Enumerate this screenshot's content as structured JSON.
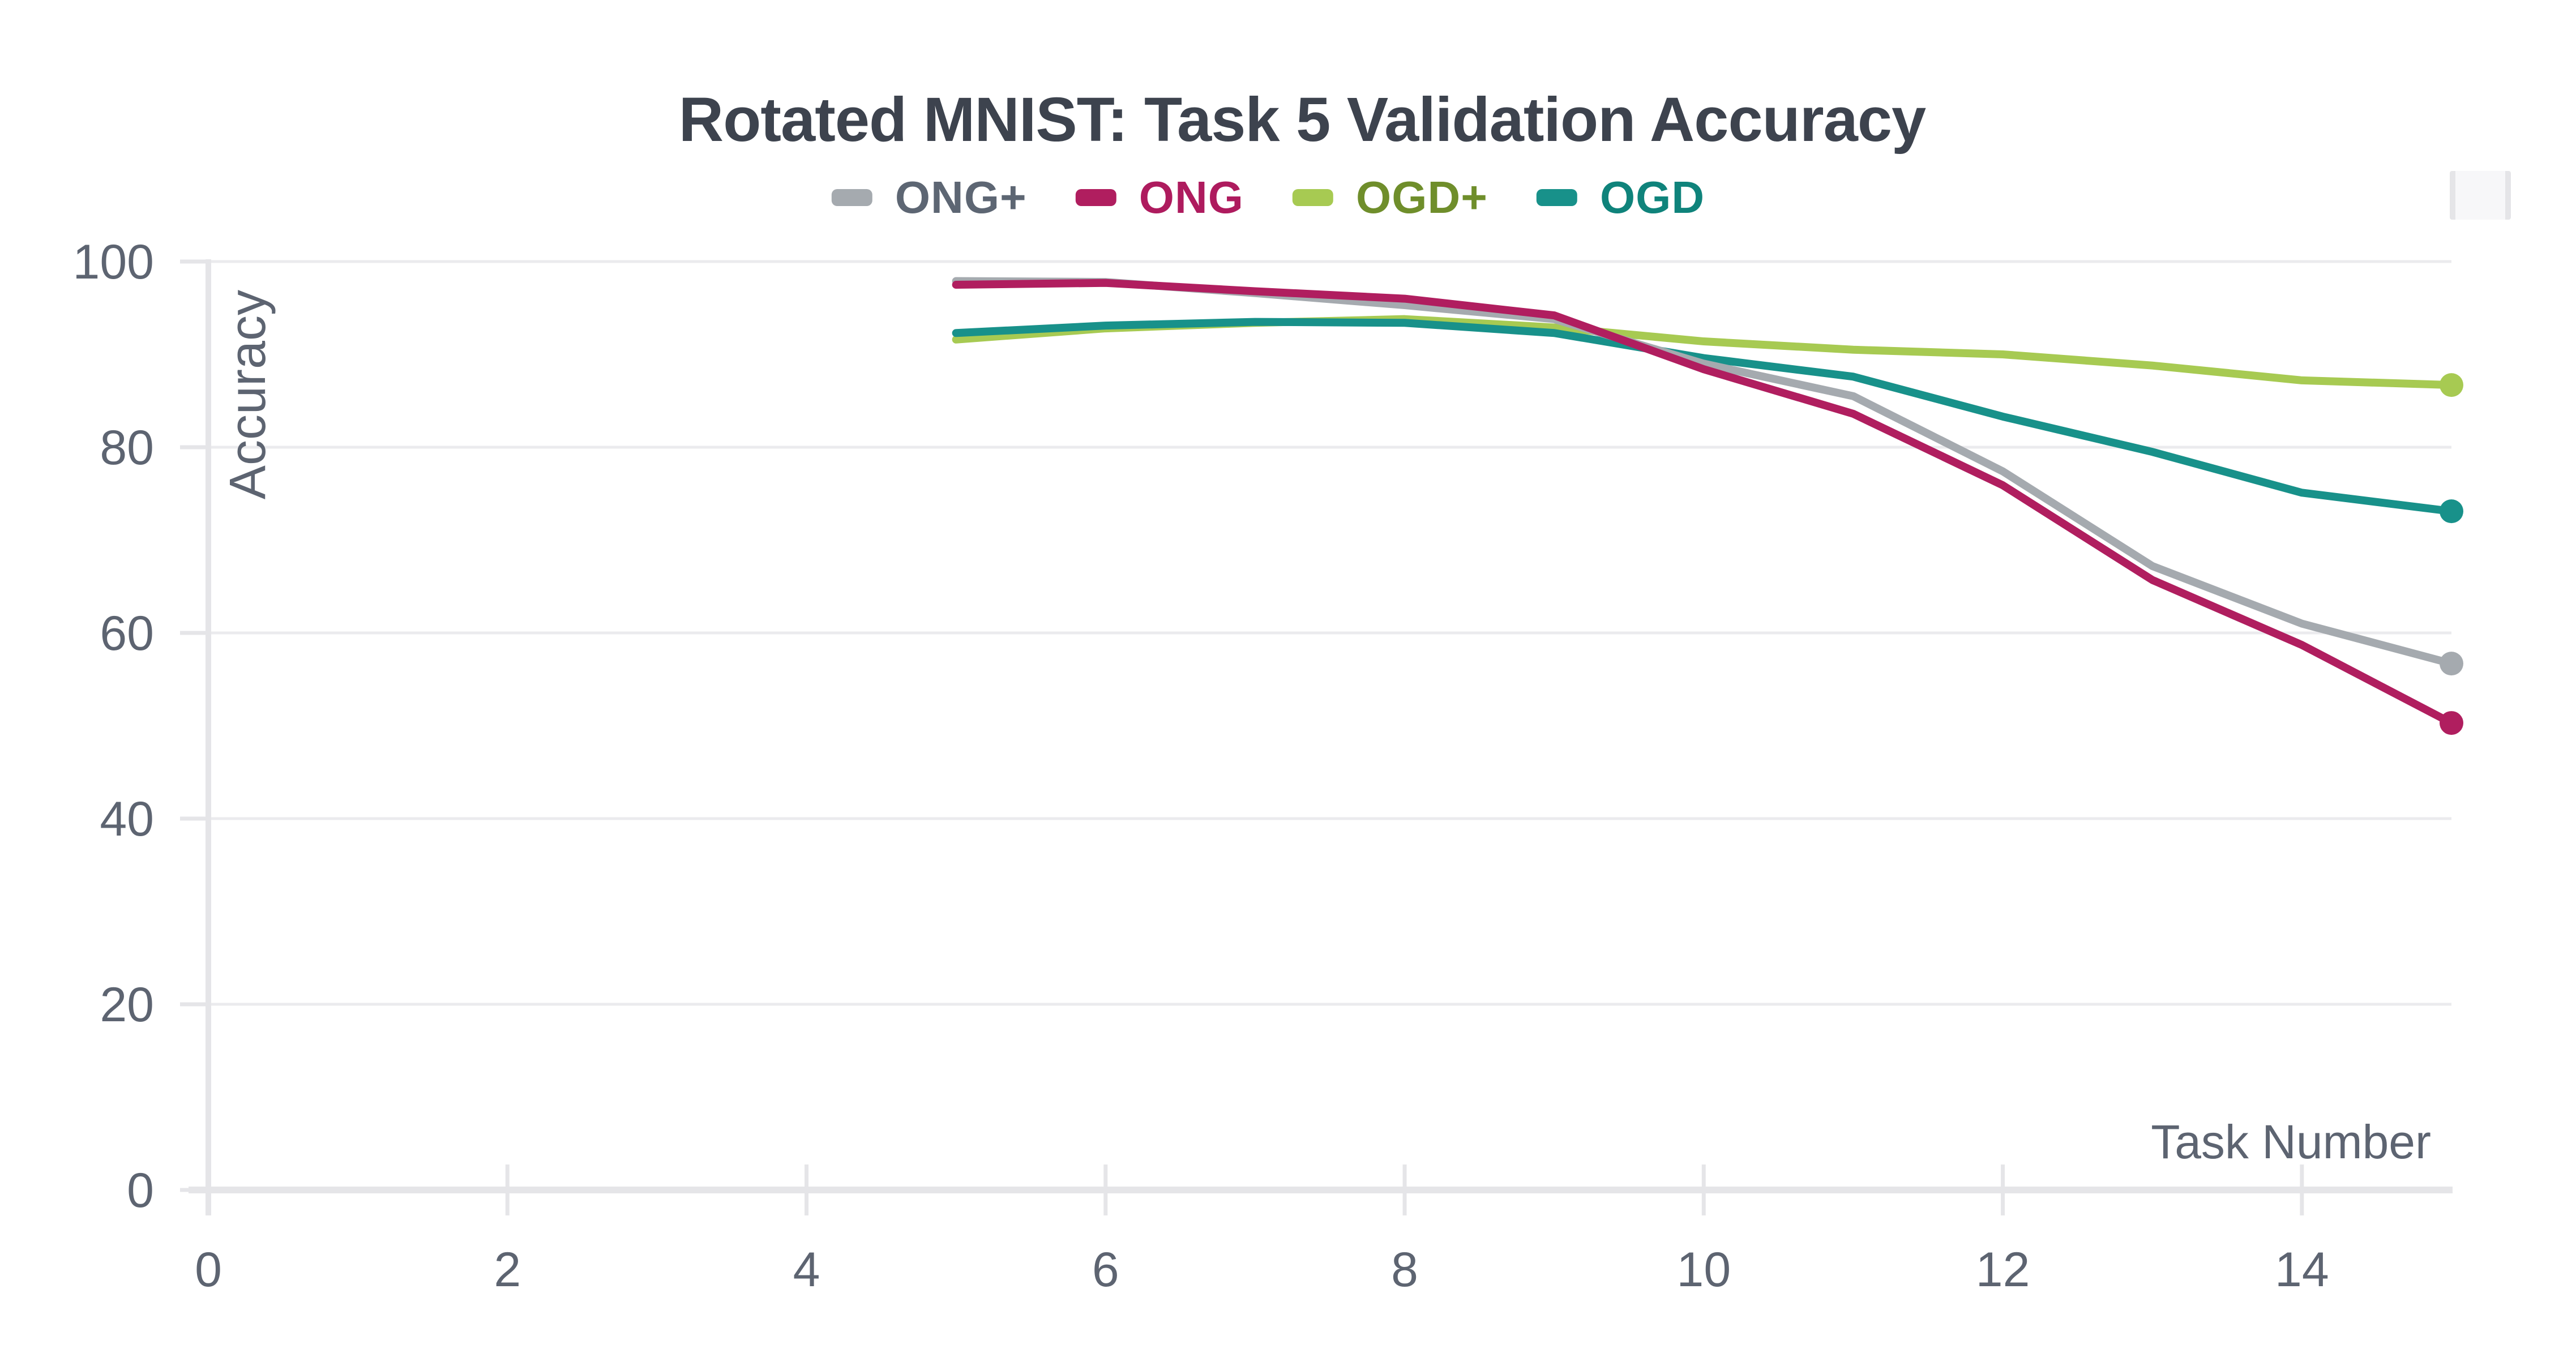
{
  "chart_data": {
    "type": "line",
    "title": "Rotated MNIST: Task 5 Validation Accuracy",
    "xlabel": "Task Number",
    "ylabel": "Accuracy",
    "xlim": [
      0,
      15.1
    ],
    "ylim": [
      0,
      100
    ],
    "xticks": [
      0,
      2,
      4,
      6,
      8,
      10,
      12,
      14
    ],
    "yticks": [
      0,
      20,
      40,
      60,
      80,
      100
    ],
    "grid": "horizontal-only",
    "legend_position": "top-center",
    "x": [
      5,
      6,
      7,
      8,
      9,
      10,
      11,
      12,
      13,
      14,
      15
    ],
    "series": [
      {
        "name": "ONG+",
        "color": "#a5aaaf",
        "label_color": "#5d6673",
        "end_marker": true,
        "values": [
          97.9,
          97.8,
          96.6,
          95.3,
          93.8,
          89.0,
          85.5,
          77.4,
          67.2,
          61.0,
          56.7
        ]
      },
      {
        "name": "ONG",
        "color": "#b01e5f",
        "label_color": "#ae1b5e",
        "end_marker": true,
        "values": [
          97.5,
          97.7,
          96.8,
          96.0,
          94.2,
          88.4,
          83.6,
          75.9,
          65.7,
          58.7,
          50.3
        ]
      },
      {
        "name": "OGD+",
        "color": "#a7ca52",
        "label_color": "#6f8e2b",
        "end_marker": true,
        "values": [
          91.6,
          92.8,
          93.4,
          93.8,
          92.9,
          91.4,
          90.5,
          90.0,
          88.8,
          87.2,
          86.7
        ]
      },
      {
        "name": "OGD",
        "color": "#18918a",
        "label_color": "#0f837b",
        "end_marker": true,
        "values": [
          92.3,
          93.1,
          93.5,
          93.4,
          92.3,
          89.6,
          87.6,
          83.3,
          79.5,
          75.1,
          73.1
        ]
      }
    ],
    "style": {
      "grid_color": "#ebebee",
      "axis_color": "#e5e5e8",
      "tick_label_color": "#5d6471",
      "axis_title_color": "#5d6471",
      "title_color": "#3d434e",
      "background": "#ffffff"
    }
  }
}
